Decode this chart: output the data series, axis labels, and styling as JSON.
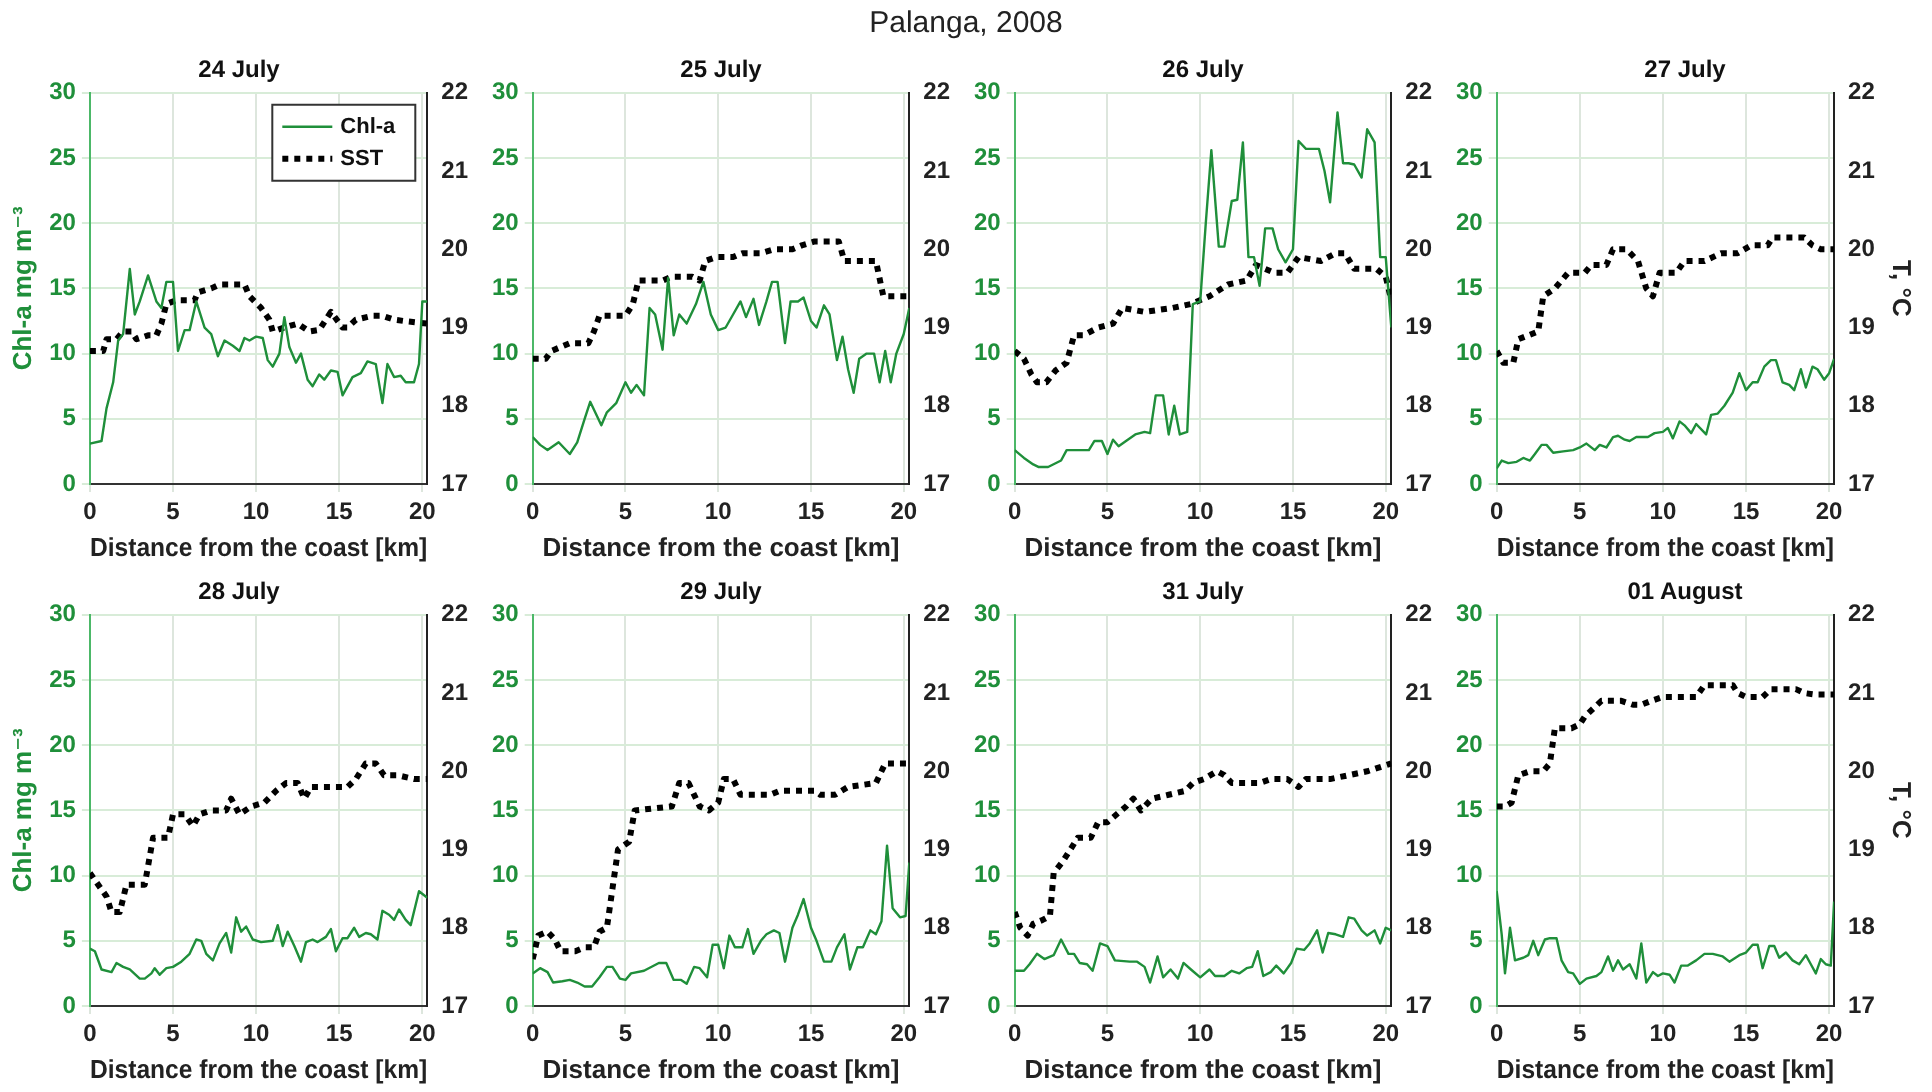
{
  "chart_data": [
    {
      "type": "line",
      "title": "24 July",
      "annotations": [
        "Palanga, 2008"
      ],
      "xlabel": "Distance from the coast [km]",
      "ylabel": "Chl-a mg m⁻³",
      "xlim": [
        0,
        20.3
      ],
      "xticks": [
        0,
        5,
        10,
        15,
        20
      ],
      "ylim": [
        0,
        30
      ],
      "yticks": [
        0,
        5,
        10,
        15,
        20,
        25,
        30
      ],
      "y2lim": [
        17,
        22
      ],
      "y2ticks": [
        17,
        18,
        19,
        20,
        21,
        22
      ],
      "grid": true,
      "legend": "top right",
      "series": [
        {
          "name": "Chl-a",
          "color": "#1f8f3a",
          "x": [
            0,
            0.7,
            1.0,
            1.4,
            1.7,
            2.0,
            2.4,
            2.7,
            3.0,
            3.5,
            4.0,
            4.3,
            4.6,
            5.0,
            5.3,
            5.7,
            6.0,
            6.4,
            6.9,
            7.3,
            7.7,
            8.1,
            8.6,
            9.0,
            9.3,
            9.6,
            10.0,
            10.4,
            10.7,
            11.0,
            11.4,
            11.7,
            12.0,
            12.4,
            12.7,
            13.1,
            13.4,
            13.8,
            14.1,
            14.5,
            14.9,
            15.2,
            15.8,
            16.3,
            16.7,
            17.2,
            17.6,
            17.9,
            18.3,
            18.7,
            19.0,
            19.5,
            19.8,
            20.0,
            20.3
          ],
          "values": [
            3.1,
            3.3,
            5.8,
            7.8,
            11,
            11.5,
            16.5,
            13,
            14,
            16,
            14,
            13.5,
            15.5,
            15.5,
            10.2,
            11.8,
            11.8,
            14,
            12,
            11.5,
            9.8,
            11,
            10.6,
            10.2,
            11.2,
            11,
            11.3,
            11.2,
            9.5,
            9,
            10,
            12.8,
            10.5,
            9.3,
            10,
            8,
            7.5,
            8.4,
            8,
            8.7,
            8.6,
            6.8,
            8.2,
            8.5,
            9.4,
            9.2,
            6.2,
            9.2,
            8.2,
            8.3,
            7.8,
            7.8,
            9.2,
            14,
            14
          ]
        },
        {
          "name": "SST",
          "color": "#000000",
          "axis": "y2",
          "line_style": "dotted",
          "x": [
            0,
            0.8,
            1.0,
            1.6,
            2.0,
            2.5,
            2.8,
            3.5,
            4.0,
            4.3,
            4.6,
            5.2,
            6.3,
            6.5,
            7.3,
            7.8,
            9.3,
            9.6,
            10.3,
            10.8,
            11.0,
            11.7,
            12.5,
            13.2,
            13.8,
            14.5,
            15.2,
            15.5,
            16.0,
            17.0,
            17.6,
            18.3,
            19.0,
            20.3
          ],
          "values": [
            18.7,
            18.7,
            18.85,
            18.85,
            18.95,
            18.95,
            18.85,
            18.9,
            18.9,
            19.05,
            19.3,
            19.35,
            19.35,
            19.45,
            19.5,
            19.55,
            19.55,
            19.4,
            19.25,
            19.1,
            18.95,
            19.0,
            19.05,
            18.95,
            18.97,
            19.2,
            19.0,
            19.0,
            19.1,
            19.15,
            19.15,
            19.1,
            19.08,
            19.05
          ]
        }
      ]
    },
    {
      "type": "line",
      "title": "25 July",
      "xlabel": "Distance from the coast [km]",
      "xlim": [
        0,
        20.3
      ],
      "xticks": [
        0,
        5,
        10,
        15,
        20
      ],
      "ylim": [
        0,
        30
      ],
      "yticks": [
        0,
        5,
        10,
        15,
        20,
        25,
        30
      ],
      "y2lim": [
        17,
        22
      ],
      "y2ticks": [
        17,
        18,
        19,
        20,
        21,
        22
      ],
      "grid": true,
      "series": [
        {
          "color": "#1f8f3a",
          "x": [
            0,
            0.4,
            0.8,
            1.4,
            2.0,
            2.4,
            2.8,
            3.1,
            3.7,
            4.0,
            4.5,
            5.0,
            5.3,
            5.6,
            6.0,
            6.3,
            6.6,
            7.0,
            7.3,
            7.6,
            7.9,
            8.3,
            8.8,
            9.2,
            9.6,
            10.0,
            10.4,
            10.8,
            11.2,
            11.5,
            11.9,
            12.2,
            12.6,
            12.9,
            13.2,
            13.6,
            13.9,
            14.3,
            14.6,
            15.0,
            15.3,
            15.7,
            16.0,
            16.4,
            16.7,
            17.0,
            17.3,
            17.6,
            18.0,
            18.4,
            18.7,
            19.0,
            19.3,
            19.6,
            20.0,
            20.3
          ],
          "values": [
            3.6,
            3.0,
            2.6,
            3.2,
            2.3,
            3.2,
            5,
            6.3,
            4.5,
            5.5,
            6.2,
            7.8,
            7,
            7.6,
            6.8,
            13.5,
            13,
            10.3,
            15.8,
            11.4,
            13,
            12.3,
            13.8,
            15.5,
            13,
            11.8,
            12,
            13,
            14,
            12.8,
            14.2,
            12.2,
            14,
            15.5,
            15.5,
            10.8,
            14,
            14,
            14.3,
            12.5,
            12,
            13.7,
            13,
            9.5,
            11.3,
            8.8,
            7,
            9.6,
            10,
            10,
            7.8,
            10.2,
            7.8,
            10,
            11.5,
            13.5
          ]
        },
        {
          "color": "#000000",
          "axis": "y2",
          "line_style": "dotted",
          "x": [
            0,
            0.7,
            1.0,
            1.5,
            2.0,
            3.0,
            3.3,
            3.6,
            5.0,
            5.4,
            5.7,
            7.0,
            7.5,
            8.6,
            9.0,
            9.3,
            9.9,
            10.8,
            11.3,
            12.3,
            13.0,
            14.0,
            14.5,
            15.2,
            16.5,
            16.8,
            18.5,
            18.9,
            20.3
          ],
          "values": [
            18.6,
            18.6,
            18.7,
            18.75,
            18.8,
            18.8,
            18.95,
            19.15,
            19.15,
            19.3,
            19.6,
            19.6,
            19.65,
            19.65,
            19.6,
            19.85,
            19.9,
            19.9,
            19.95,
            19.95,
            20.0,
            20.0,
            20.05,
            20.1,
            20.1,
            19.85,
            19.85,
            19.4,
            19.4
          ]
        }
      ]
    },
    {
      "type": "line",
      "title": "26 July",
      "xlabel": "Distance from the coast [km]",
      "xlim": [
        0,
        20.3
      ],
      "xticks": [
        0,
        5,
        10,
        15,
        20
      ],
      "ylim": [
        0,
        30
      ],
      "yticks": [
        0,
        5,
        10,
        15,
        20,
        25,
        30
      ],
      "y2lim": [
        17,
        22
      ],
      "y2ticks": [
        17,
        18,
        19,
        20,
        21,
        22
      ],
      "grid": true,
      "series": [
        {
          "color": "#1f8f3a",
          "x": [
            0,
            0.5,
            1.0,
            1.3,
            1.8,
            2.5,
            2.8,
            3.5,
            4.0,
            4.3,
            4.7,
            5.0,
            5.3,
            5.6,
            6.0,
            6.5,
            7.0,
            7.3,
            7.6,
            8.0,
            8.3,
            8.6,
            8.9,
            9.3,
            9.6,
            10.0,
            10.3,
            10.6,
            11.0,
            11.3,
            11.7,
            12.0,
            12.3,
            12.6,
            12.9,
            13.2,
            13.5,
            13.9,
            14.2,
            14.6,
            15.0,
            15.3,
            15.7,
            16.0,
            16.4,
            16.7,
            17.0,
            17.4,
            17.7,
            18.0,
            18.3,
            18.7,
            19.0,
            19.4,
            19.7,
            20.0,
            20.3
          ],
          "values": [
            2.6,
            2,
            1.5,
            1.3,
            1.3,
            1.8,
            2.6,
            2.6,
            2.6,
            3.3,
            3.3,
            2.3,
            3.4,
            2.9,
            3.3,
            3.8,
            4,
            3.9,
            6.8,
            6.8,
            3.8,
            6,
            3.8,
            4,
            13.8,
            14,
            20,
            25.6,
            18.2,
            18.2,
            21.7,
            21.8,
            26.2,
            17.4,
            17.4,
            15.2,
            19.6,
            19.6,
            18,
            17,
            18,
            26.3,
            25.7,
            25.7,
            25.7,
            24,
            21.6,
            28.5,
            24.6,
            24.6,
            24.5,
            23.5,
            27.2,
            26.2,
            17.4,
            17.4,
            12
          ]
        },
        {
          "color": "#000000",
          "axis": "y2",
          "line_style": "dotted",
          "x": [
            0,
            0.5,
            0.9,
            1.2,
            1.7,
            2.2,
            2.8,
            3.2,
            3.7,
            4.5,
            5.3,
            5.8,
            7.0,
            8.5,
            9.5,
            10.5,
            11.5,
            12.5,
            13.0,
            14.0,
            14.7,
            15.3,
            16.5,
            17.3,
            17.8,
            18.3,
            19.5,
            20.0,
            20.3
          ],
          "values": [
            18.7,
            18.6,
            18.4,
            18.3,
            18.3,
            18.45,
            18.55,
            18.9,
            18.9,
            19.0,
            19.05,
            19.25,
            19.2,
            19.25,
            19.3,
            19.4,
            19.55,
            19.6,
            19.8,
            19.7,
            19.7,
            19.9,
            19.85,
            19.95,
            19.95,
            19.75,
            19.75,
            19.65,
            19.35
          ]
        }
      ]
    },
    {
      "type": "line",
      "title": "27 July",
      "xlabel": "Distance from the coast [km]",
      "y2label": "T, °C",
      "xlim": [
        0,
        20.3
      ],
      "xticks": [
        0,
        5,
        10,
        15,
        20
      ],
      "ylim": [
        0,
        30
      ],
      "yticks": [
        0,
        5,
        10,
        15,
        20,
        25,
        30
      ],
      "y2lim": [
        17,
        22
      ],
      "y2ticks": [
        17,
        18,
        19,
        20,
        21,
        22
      ],
      "grid": true,
      "series": [
        {
          "color": "#1f8f3a",
          "x": [
            0,
            0.3,
            0.7,
            1.2,
            1.6,
            2.0,
            2.3,
            2.7,
            3.0,
            3.4,
            4.0,
            4.6,
            5.0,
            5.4,
            5.9,
            6.2,
            6.6,
            7.0,
            7.3,
            7.7,
            8.0,
            8.4,
            9.1,
            9.5,
            10.0,
            10.3,
            10.6,
            11.0,
            11.3,
            11.7,
            12.0,
            12.6,
            12.9,
            13.3,
            13.7,
            14.2,
            14.6,
            15.0,
            15.4,
            15.7,
            16.1,
            16.5,
            16.8,
            17.2,
            17.6,
            17.9,
            18.3,
            18.6,
            19.0,
            19.3,
            19.7,
            20.0,
            20.3
          ],
          "values": [
            1.2,
            1.8,
            1.6,
            1.7,
            2,
            1.8,
            2.3,
            3,
            3,
            2.4,
            2.5,
            2.6,
            2.8,
            3.1,
            2.6,
            3,
            2.8,
            3.6,
            3.7,
            3.4,
            3.3,
            3.6,
            3.6,
            3.9,
            4,
            4.3,
            3.5,
            4.8,
            4.5,
            3.9,
            4.6,
            3.8,
            5.3,
            5.4,
            6,
            7,
            8.5,
            7.2,
            7.8,
            7.8,
            9,
            9.5,
            9.5,
            7.8,
            7.6,
            7.2,
            8.8,
            7.4,
            9,
            8.8,
            8,
            8.5,
            9.6
          ]
        },
        {
          "color": "#000000",
          "axis": "y2",
          "line_style": "dotted",
          "x": [
            0,
            0.4,
            1.0,
            1.3,
            2.5,
            2.8,
            3.5,
            4.3,
            5.3,
            5.7,
            6.6,
            7.0,
            7.8,
            8.5,
            9.0,
            9.4,
            9.8,
            10.8,
            11.3,
            12.5,
            13.5,
            14.5,
            15.3,
            16.3,
            16.6,
            18.5,
            19.0,
            19.5,
            20.3
          ],
          "values": [
            18.7,
            18.55,
            18.55,
            18.85,
            18.95,
            19.4,
            19.5,
            19.7,
            19.7,
            19.8,
            19.8,
            20.0,
            20.0,
            19.85,
            19.5,
            19.4,
            19.7,
            19.7,
            19.85,
            19.85,
            19.95,
            19.95,
            20.05,
            20.05,
            20.15,
            20.15,
            20.05,
            20.0,
            20.0
          ]
        }
      ]
    },
    {
      "type": "line",
      "title": "28 July",
      "xlabel": "Distance from the coast [km]",
      "ylabel": "Chl-a mg m⁻³",
      "xlim": [
        0,
        20.3
      ],
      "xticks": [
        0,
        5,
        10,
        15,
        20
      ],
      "ylim": [
        0,
        30
      ],
      "yticks": [
        0,
        5,
        10,
        15,
        20,
        25,
        30
      ],
      "y2lim": [
        17,
        22
      ],
      "y2ticks": [
        17,
        18,
        19,
        20,
        21,
        22
      ],
      "grid": true,
      "series": [
        {
          "color": "#1f8f3a",
          "x": [
            0,
            0.3,
            0.7,
            1.3,
            1.6,
            2.0,
            2.4,
            3.0,
            3.3,
            3.7,
            3.9,
            4.2,
            4.6,
            5.0,
            5.5,
            6.0,
            6.4,
            6.7,
            7.0,
            7.4,
            7.8,
            8.2,
            8.5,
            8.8,
            9.1,
            9.4,
            9.8,
            10.3,
            11.0,
            11.3,
            11.6,
            11.9,
            12.3,
            12.7,
            13.0,
            13.4,
            13.7,
            14.2,
            14.5,
            14.8,
            15.2,
            15.5,
            15.9,
            16.2,
            16.6,
            16.9,
            17.3,
            17.6,
            18.0,
            18.3,
            18.6,
            19.0,
            19.3,
            19.8,
            20.3
          ],
          "values": [
            4.4,
            4.2,
            2.8,
            2.6,
            3.3,
            3,
            2.8,
            2.1,
            2.1,
            2.5,
            2.9,
            2.4,
            2.9,
            3,
            3.4,
            4,
            5.1,
            5,
            4,
            3.5,
            4.8,
            5.6,
            4.1,
            6.8,
            5.7,
            6.1,
            5.1,
            4.9,
            5,
            6.2,
            4.6,
            5.7,
            4.6,
            3.4,
            4.9,
            5.1,
            4.9,
            5.3,
            5.9,
            4.2,
            5.2,
            5.2,
            6,
            5.3,
            5.6,
            5.5,
            5.1,
            7.3,
            7,
            6.6,
            7.4,
            6.6,
            6.2,
            8.8,
            8.3
          ]
        },
        {
          "color": "#000000",
          "axis": "y2",
          "line_style": "dotted",
          "x": [
            0,
            0.5,
            1.0,
            1.3,
            1.8,
            2.2,
            3.3,
            3.8,
            4.7,
            5.0,
            5.7,
            6.2,
            6.6,
            7.3,
            8.2,
            8.5,
            9.0,
            9.7,
            10.5,
            11.2,
            11.8,
            12.5,
            12.9,
            13.3,
            14.3,
            15.5,
            16.0,
            16.6,
            17.2,
            17.7,
            18.5,
            19.5,
            20.3
          ],
          "values": [
            18.7,
            18.55,
            18.4,
            18.2,
            18.2,
            18.55,
            18.55,
            19.15,
            19.15,
            19.45,
            19.45,
            19.3,
            19.45,
            19.5,
            19.5,
            19.65,
            19.45,
            19.55,
            19.6,
            19.75,
            19.85,
            19.85,
            19.65,
            19.8,
            19.8,
            19.8,
            19.9,
            20.1,
            20.1,
            19.95,
            19.95,
            19.9,
            19.9
          ]
        }
      ]
    },
    {
      "type": "line",
      "title": "29 July",
      "xlabel": "Distance from the coast [km]",
      "xlim": [
        0,
        20.3
      ],
      "xticks": [
        0,
        5,
        10,
        15,
        20
      ],
      "ylim": [
        0,
        30
      ],
      "yticks": [
        0,
        5,
        10,
        15,
        20,
        25,
        30
      ],
      "y2lim": [
        17,
        22
      ],
      "y2ticks": [
        17,
        18,
        19,
        20,
        21,
        22
      ],
      "grid": true,
      "series": [
        {
          "color": "#1f8f3a",
          "x": [
            0,
            0.4,
            0.8,
            1.1,
            1.6,
            2.0,
            2.4,
            2.8,
            3.2,
            3.6,
            4.0,
            4.3,
            4.7,
            5.0,
            5.3,
            6.0,
            6.8,
            7.2,
            7.6,
            8.0,
            8.3,
            8.7,
            9.0,
            9.4,
            9.7,
            10.0,
            10.3,
            10.6,
            10.9,
            11.3,
            11.6,
            11.9,
            12.3,
            12.6,
            13.0,
            13.3,
            13.6,
            14.0,
            14.3,
            14.6,
            15.0,
            15.3,
            15.7,
            16.1,
            16.4,
            16.8,
            17.1,
            17.5,
            17.8,
            18.2,
            18.5,
            18.8,
            19.1,
            19.4,
            19.8,
            20.1,
            20.3
          ],
          "values": [
            2.5,
            2.9,
            2.6,
            1.8,
            1.9,
            2,
            1.8,
            1.5,
            1.5,
            2.2,
            3,
            3,
            2.1,
            2,
            2.5,
            2.7,
            3.3,
            3.3,
            2,
            2,
            1.7,
            3,
            2.9,
            2.2,
            4.7,
            4.7,
            2.9,
            5.4,
            4.5,
            4.5,
            5.9,
            4,
            5,
            5.5,
            5.8,
            5.6,
            3.4,
            6,
            7,
            8.2,
            6,
            5,
            3.4,
            3.4,
            4.5,
            5.5,
            2.8,
            4.5,
            4.5,
            5.8,
            5.5,
            6.5,
            12.3,
            7.5,
            6.8,
            6.9,
            11
          ]
        },
        {
          "color": "#000000",
          "axis": "y2",
          "line_style": "dotted",
          "x": [
            0,
            0.3,
            0.8,
            1.2,
            1.5,
            2.3,
            2.8,
            3.3,
            3.6,
            4.0,
            4.3,
            4.6,
            5.2,
            5.5,
            7.5,
            7.9,
            8.4,
            9.0,
            9.5,
            10.0,
            10.3,
            10.8,
            11.2,
            12.8,
            13.3,
            15.2,
            15.5,
            16.3,
            17.0,
            18.5,
            19.0,
            20.3
          ],
          "values": [
            17.6,
            17.9,
            17.95,
            17.85,
            17.7,
            17.7,
            17.75,
            17.75,
            17.95,
            18.0,
            18.5,
            19.0,
            19.1,
            19.5,
            19.55,
            19.85,
            19.85,
            19.55,
            19.5,
            19.6,
            19.9,
            19.9,
            19.7,
            19.7,
            19.75,
            19.75,
            19.7,
            19.7,
            19.8,
            19.85,
            20.1,
            20.1
          ]
        }
      ]
    },
    {
      "type": "line",
      "title": "31 July",
      "xlabel": "Distance from the coast [km]",
      "xlim": [
        0,
        20.3
      ],
      "xticks": [
        0,
        5,
        10,
        15,
        20
      ],
      "ylim": [
        0,
        30
      ],
      "yticks": [
        0,
        5,
        10,
        15,
        20,
        25,
        30
      ],
      "y2lim": [
        17,
        22
      ],
      "y2ticks": [
        17,
        18,
        19,
        20,
        21,
        22
      ],
      "grid": true,
      "series": [
        {
          "color": "#1f8f3a",
          "x": [
            0,
            0.5,
            0.8,
            1.2,
            1.6,
            2.1,
            2.5,
            2.9,
            3.2,
            3.5,
            3.9,
            4.2,
            4.6,
            5.0,
            5.4,
            6.2,
            6.6,
            7.0,
            7.3,
            7.7,
            8.0,
            8.4,
            8.8,
            9.1,
            9.5,
            10.0,
            10.5,
            10.8,
            11.3,
            11.7,
            12.1,
            12.5,
            12.8,
            13.1,
            13.4,
            13.8,
            14.1,
            14.5,
            14.9,
            15.2,
            15.6,
            15.9,
            16.3,
            16.6,
            16.9,
            17.3,
            17.7,
            18.0,
            18.3,
            18.7,
            19.0,
            19.4,
            19.7,
            20.0,
            20.3
          ],
          "values": [
            2.7,
            2.7,
            3.2,
            4,
            3.6,
            3.9,
            5.1,
            4,
            4,
            3.3,
            3.2,
            2.7,
            4.8,
            4.6,
            3.5,
            3.4,
            3.4,
            3,
            1.8,
            3.8,
            2.2,
            2.8,
            2.1,
            3.3,
            2.8,
            2.2,
            2.8,
            2.3,
            2.3,
            2.7,
            2.5,
            2.9,
            3,
            4.2,
            2.3,
            2.6,
            3.1,
            2.5,
            3.3,
            4.4,
            4.3,
            4.8,
            5.8,
            4.1,
            5.6,
            5.5,
            5.3,
            6.8,
            6.7,
            5.8,
            5.4,
            5.8,
            4.8,
            6,
            5.8
          ]
        },
        {
          "color": "#000000",
          "axis": "y2",
          "line_style": "dotted",
          "x": [
            0,
            0.3,
            0.7,
            1.0,
            1.5,
            1.9,
            2.1,
            2.6,
            3.0,
            3.4,
            4.1,
            4.5,
            5.0,
            5.5,
            6.0,
            6.4,
            6.8,
            7.4,
            8.3,
            9.2,
            9.6,
            10.2,
            10.9,
            11.3,
            11.7,
            12.5,
            13.2,
            13.8,
            14.7,
            15.3,
            15.7,
            17.0,
            18.0,
            19.0,
            20.3
          ],
          "values": [
            18.2,
            18.0,
            17.9,
            18.05,
            18.1,
            18.15,
            18.7,
            18.85,
            19.0,
            19.15,
            19.15,
            19.35,
            19.35,
            19.45,
            19.55,
            19.65,
            19.5,
            19.65,
            19.7,
            19.75,
            19.85,
            19.9,
            20.0,
            19.95,
            19.85,
            19.85,
            19.85,
            19.9,
            19.9,
            19.8,
            19.9,
            19.9,
            19.95,
            20.0,
            20.1
          ]
        }
      ]
    },
    {
      "type": "line",
      "title": "01 August",
      "xlabel": "Distance from the coast [km]",
      "y2label": "T, °C",
      "xlim": [
        0,
        20.3
      ],
      "xticks": [
        0,
        5,
        10,
        15,
        20
      ],
      "ylim": [
        0,
        30
      ],
      "yticks": [
        0,
        5,
        10,
        15,
        20,
        25,
        30
      ],
      "y2lim": [
        17,
        22
      ],
      "y2ticks": [
        17,
        18,
        19,
        20,
        21,
        22
      ],
      "grid": true,
      "series": [
        {
          "color": "#1f8f3a",
          "x": [
            0,
            0.3,
            0.5,
            0.8,
            1.1,
            1.6,
            1.9,
            2.2,
            2.5,
            2.9,
            3.2,
            3.6,
            3.9,
            4.3,
            4.6,
            5.0,
            5.4,
            6.0,
            6.3,
            6.7,
            7.0,
            7.3,
            7.6,
            8.0,
            8.4,
            8.7,
            9.0,
            9.4,
            9.7,
            10.0,
            10.4,
            10.7,
            11.1,
            11.5,
            12.0,
            12.5,
            13.0,
            13.6,
            14.0,
            14.6,
            15.0,
            15.4,
            15.7,
            16.0,
            16.4,
            16.7,
            17.0,
            17.4,
            17.8,
            18.2,
            18.6,
            18.9,
            19.2,
            19.5,
            19.8,
            20.1,
            20.3
          ],
          "values": [
            8.8,
            5.5,
            2.5,
            6,
            3.5,
            3.7,
            3.9,
            5,
            3.9,
            5.1,
            5.2,
            5.2,
            3.5,
            2.6,
            2.5,
            1.7,
            2.1,
            2.3,
            2.6,
            3.8,
            2.7,
            3.5,
            2.8,
            3.2,
            2.1,
            4.8,
            1.8,
            2.6,
            2.3,
            2.5,
            2.4,
            1.8,
            3.1,
            3.1,
            3.5,
            4,
            4,
            3.8,
            3.4,
            3.9,
            4.1,
            4.7,
            4.7,
            2.9,
            4.6,
            4.6,
            3.7,
            4.1,
            3.5,
            3.2,
            3.9,
            3.2,
            2.5,
            3.6,
            3.2,
            3.1,
            8
          ]
        },
        {
          "color": "#000000",
          "axis": "y2",
          "line_style": "dotted",
          "x": [
            0,
            0.5,
            0.9,
            1.3,
            2.0,
            2.8,
            3.2,
            3.5,
            4.5,
            5.0,
            5.3,
            5.8,
            6.3,
            7.5,
            8.2,
            8.7,
            9.3,
            10.0,
            11.5,
            12.0,
            12.5,
            14.2,
            14.5,
            15.0,
            16.0,
            16.5,
            18.0,
            18.5,
            19.2,
            20.3
          ],
          "values": [
            19.55,
            19.55,
            19.6,
            19.95,
            20.0,
            20.0,
            20.1,
            20.55,
            20.55,
            20.6,
            20.7,
            20.8,
            20.9,
            20.9,
            20.85,
            20.85,
            20.9,
            20.95,
            20.95,
            20.95,
            21.1,
            21.1,
            21.0,
            20.95,
            20.95,
            21.05,
            21.05,
            21.0,
            20.98,
            20.98
          ]
        }
      ]
    }
  ]
}
